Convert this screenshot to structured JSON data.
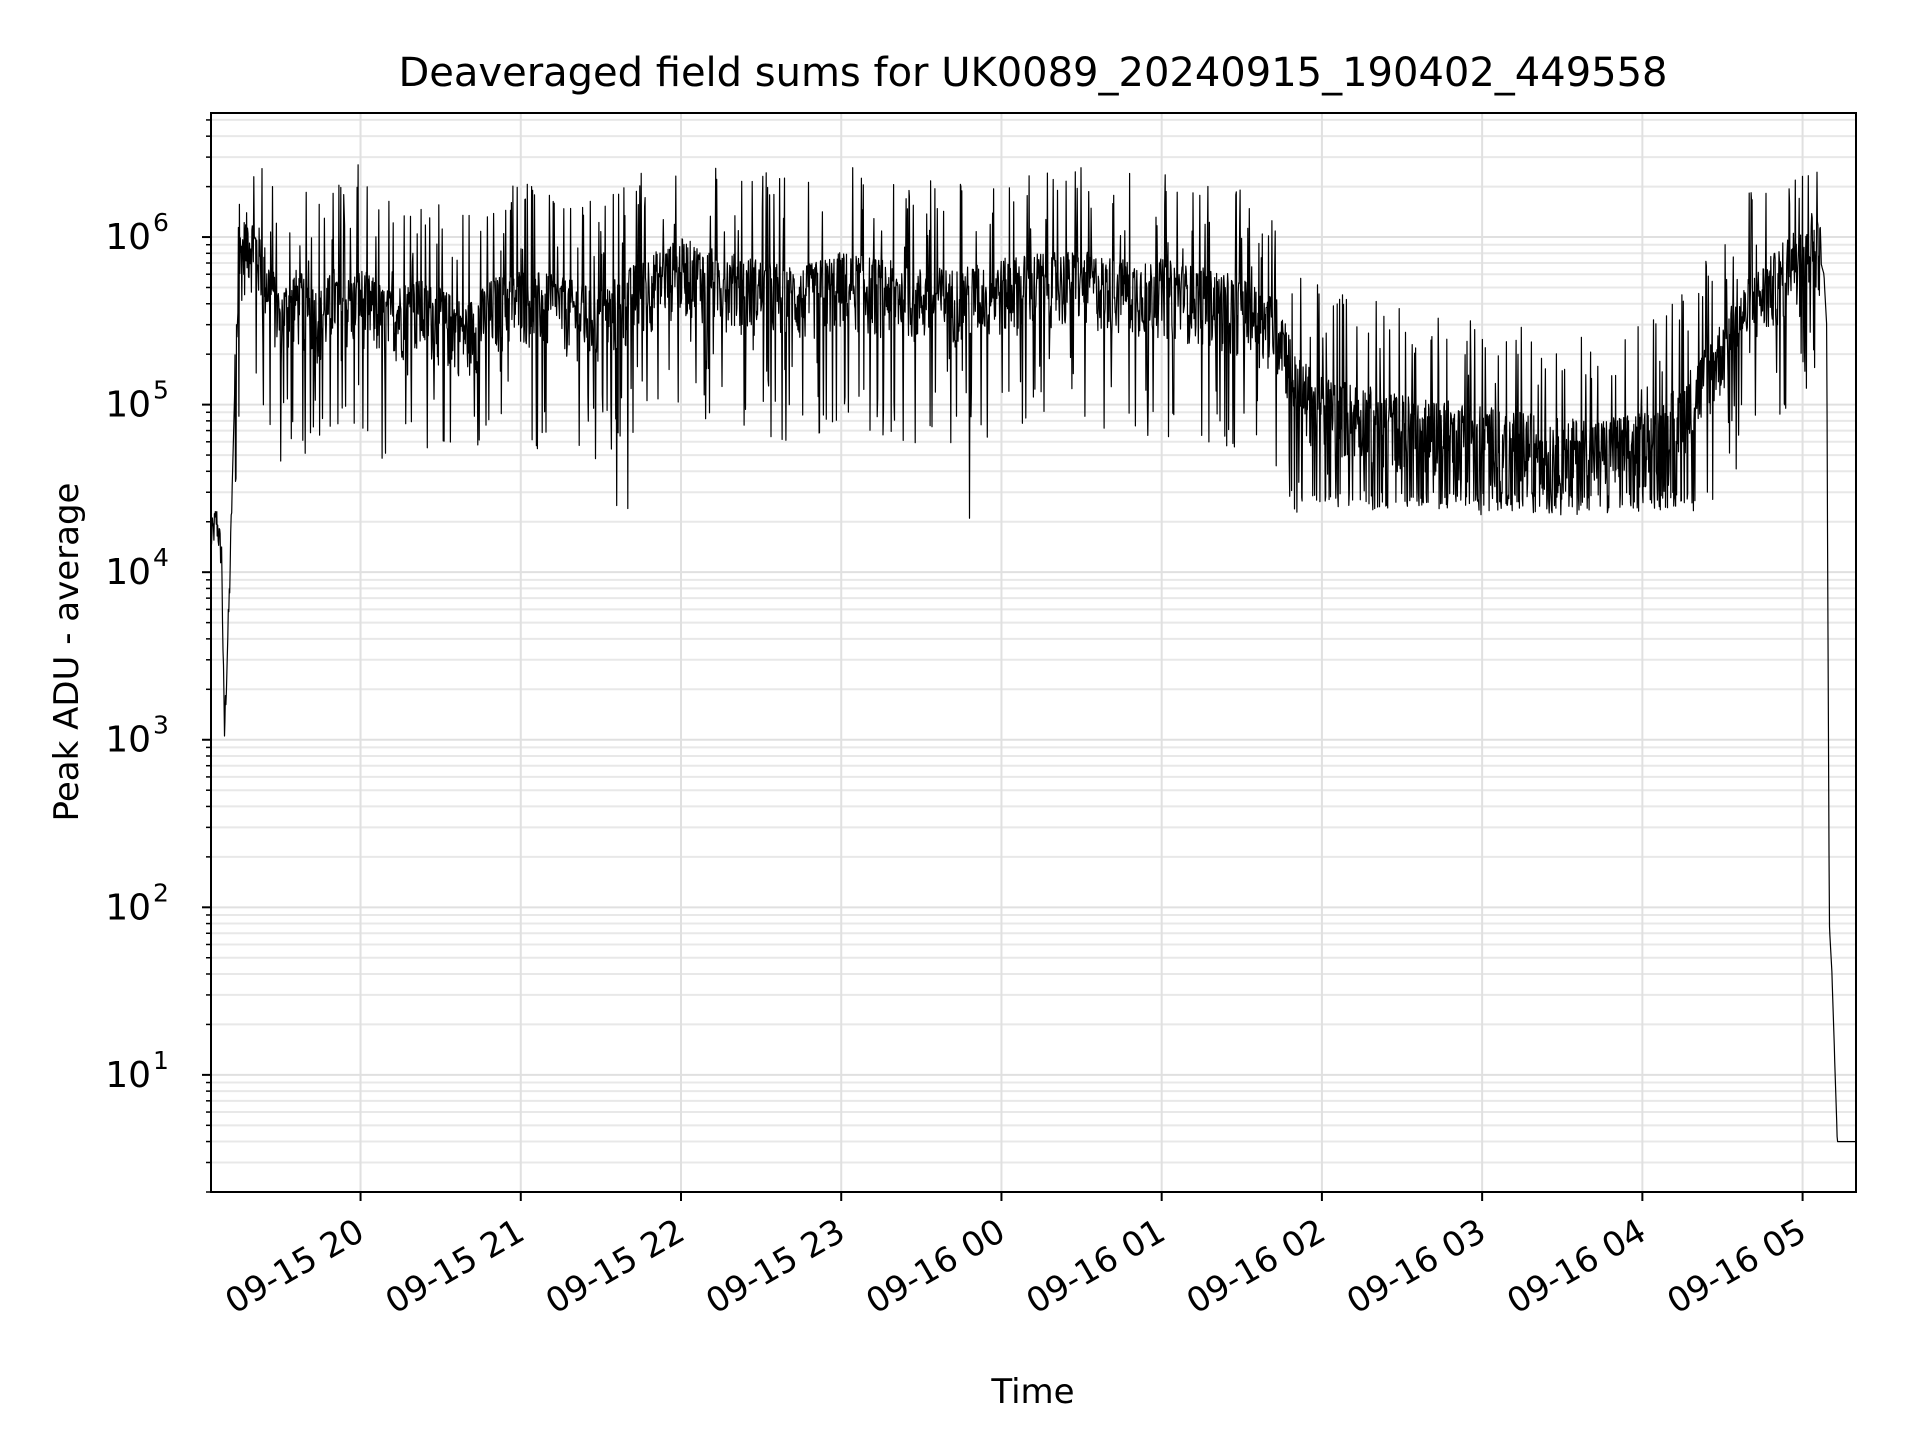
{
  "chart_data": {
    "type": "line",
    "title": "Deaveraged field sums for UK0089_20240915_190402_449558",
    "xlabel": "Time",
    "ylabel": "Peak ADU - average",
    "yscale": "log",
    "ylim": [
      2,
      5500000
    ],
    "xlim": [
      "09-15 19:04",
      "09-16 05:20"
    ],
    "grid": true,
    "x_ticks": [
      {
        "label": "09-15 20",
        "time": "09-15 20:00"
      },
      {
        "label": "09-15 21",
        "time": "09-15 21:00"
      },
      {
        "label": "09-15 22",
        "time": "09-15 22:00"
      },
      {
        "label": "09-15 23",
        "time": "09-15 23:00"
      },
      {
        "label": "09-16 00",
        "time": "09-16 00:00"
      },
      {
        "label": "09-16 01",
        "time": "09-16 01:00"
      },
      {
        "label": "09-16 02",
        "time": "09-16 02:00"
      },
      {
        "label": "09-16 03",
        "time": "09-16 03:00"
      },
      {
        "label": "09-16 04",
        "time": "09-16 04:00"
      },
      {
        "label": "09-16 05",
        "time": "09-16 05:00"
      }
    ],
    "y_ticks": [
      {
        "value": 10,
        "base": "10",
        "exp": "1"
      },
      {
        "value": 100,
        "base": "10",
        "exp": "2"
      },
      {
        "value": 1000,
        "base": "10",
        "exp": "3"
      },
      {
        "value": 10000,
        "base": "10",
        "exp": "4"
      },
      {
        "value": 100000,
        "base": "10",
        "exp": "5"
      },
      {
        "value": 1000000,
        "base": "10",
        "exp": "6"
      }
    ],
    "series": [
      {
        "color": "#000000",
        "x": [
          "09-15 19:04",
          "09-15 19:06",
          "09-15 19:08",
          "09-15 19:09",
          "09-15 19:11",
          "09-15 19:13",
          "09-15 19:15",
          "09-15 19:18",
          "09-15 19:22",
          "09-15 19:25",
          "09-15 19:30",
          "09-15 19:35",
          "09-15 19:40",
          "09-15 19:45",
          "09-15 19:50",
          "09-15 19:55",
          "09-15 20:00",
          "09-15 20:10",
          "09-15 20:20",
          "09-15 20:30",
          "09-15 20:40",
          "09-15 20:50",
          "09-15 21:00",
          "09-15 21:15",
          "09-15 21:30",
          "09-15 21:45",
          "09-15 22:00",
          "09-15 22:15",
          "09-15 22:30",
          "09-15 22:45",
          "09-15 23:00",
          "09-15 23:15",
          "09-15 23:30",
          "09-15 23:45",
          "09-16 00:00",
          "09-16 00:15",
          "09-16 00:30",
          "09-16 00:45",
          "09-16 01:00",
          "09-16 01:15",
          "09-16 01:30",
          "09-16 01:45",
          "09-16 01:50",
          "09-16 02:00",
          "09-16 02:15",
          "09-16 02:30",
          "09-16 02:45",
          "09-16 03:00",
          "09-16 03:15",
          "09-16 03:30",
          "09-16 03:45",
          "09-16 04:00",
          "09-16 04:10",
          "09-16 04:20",
          "09-16 04:30",
          "09-16 04:40",
          "09-16 04:50",
          "09-16 05:00",
          "09-16 05:05",
          "09-16 05:08",
          "09-16 05:09",
          "09-16 05:10",
          "09-16 05:11",
          "09-16 05:13",
          "09-16 05:20"
        ],
        "y": [
          15000,
          20000,
          12000,
          1000,
          8000,
          150000,
          700000,
          900000,
          700000,
          500000,
          300000,
          400000,
          350000,
          300000,
          400000,
          350000,
          400000,
          300000,
          350000,
          300000,
          250000,
          350000,
          400000,
          350000,
          300000,
          450000,
          600000,
          500000,
          450000,
          400000,
          500000,
          450000,
          400000,
          400000,
          450000,
          500000,
          500000,
          450000,
          450000,
          400000,
          350000,
          250000,
          120000,
          90000,
          80000,
          70000,
          65000,
          60000,
          55000,
          50000,
          50000,
          55000,
          70000,
          110000,
          200000,
          350000,
          500000,
          800000,
          900000,
          600000,
          300000,
          80,
          40,
          4,
          4
        ],
        "noise": {
          "upper": [
            2700000,
            1300000,
            2000000
          ],
          "lower": [
            25000,
            20000,
            27000
          ]
        }
      }
    ]
  }
}
